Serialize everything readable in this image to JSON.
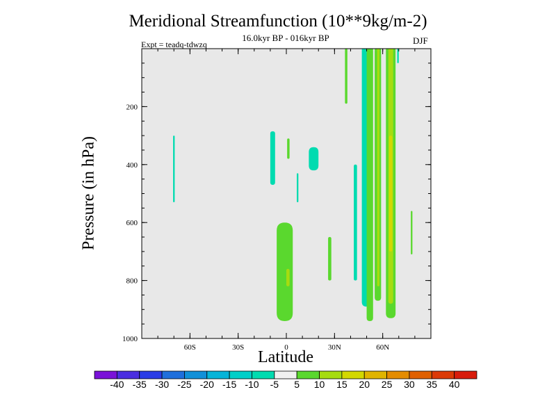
{
  "colors": {
    "plot_background": "#e8e8e8",
    "near_zero": "#e8e8e8"
  },
  "chart_data": {
    "type": "heatmap",
    "subtype": "filled-contour",
    "title": "Meridional Streamfunction (10**9kg/m-2)",
    "subtitle": "16.0kyr BP - 016kyr BP",
    "left_label": "Expt = teadq-tdwzq",
    "right_label": "DJF",
    "xlabel": "Latitude",
    "ylabel": "Pressure (in hPa)",
    "xlim": [
      -90,
      90
    ],
    "ylim": [
      1000,
      0
    ],
    "x_ticks": [
      {
        "value": -60,
        "label": "60S"
      },
      {
        "value": -30,
        "label": "30S"
      },
      {
        "value": 0,
        "label": "0"
      },
      {
        "value": 30,
        "label": "30N"
      },
      {
        "value": 60,
        "label": "60N"
      }
    ],
    "y_ticks": [
      {
        "value": 200,
        "label": "200"
      },
      {
        "value": 400,
        "label": "400"
      },
      {
        "value": 600,
        "label": "600"
      },
      {
        "value": 800,
        "label": "800"
      },
      {
        "value": 1000,
        "label": "1000"
      }
    ],
    "colorbar": {
      "labels": [
        "-40",
        "-35",
        "-30",
        "-25",
        "-20",
        "-15",
        "-10",
        "-5",
        "5",
        "10",
        "15",
        "20",
        "25",
        "30",
        "35",
        "40"
      ],
      "colors": [
        "#7a12d8",
        "#4a2ee0",
        "#2a3ce6",
        "#1f6fdc",
        "#1190d8",
        "#06b4d8",
        "#00cfc8",
        "#00dbb0",
        "#f0f0f0",
        "#5ad82e",
        "#a6dc10",
        "#d3d800",
        "#e0b400",
        "#e48c00",
        "#e06000",
        "#dc3a06",
        "#d81c0c"
      ]
    },
    "features": [
      {
        "sign": "negative",
        "level": -5,
        "lat_range": [
          -70.5,
          -69.5
        ],
        "p_range": [
          300,
          530
        ]
      },
      {
        "sign": "negative",
        "level": -5,
        "lat_range": [
          -10,
          -7
        ],
        "p_range": [
          285,
          470
        ]
      },
      {
        "sign": "positive",
        "level": 5,
        "lat_range": [
          0.5,
          2
        ],
        "p_range": [
          310,
          380
        ]
      },
      {
        "sign": "negative",
        "level": -5,
        "lat_range": [
          14,
          20
        ],
        "p_range": [
          340,
          420
        ]
      },
      {
        "sign": "negative",
        "level": -5,
        "lat_range": [
          6.5,
          7.5
        ],
        "p_range": [
          430,
          530
        ]
      },
      {
        "sign": "positive",
        "level": 5,
        "lat_range": [
          -6,
          4
        ],
        "p_range": [
          600,
          940
        ]
      },
      {
        "sign": "positive",
        "level": 10,
        "lat_range": [
          0,
          2
        ],
        "p_range": [
          760,
          820
        ]
      },
      {
        "sign": "positive",
        "level": 5,
        "lat_range": [
          26,
          28
        ],
        "p_range": [
          650,
          800
        ]
      },
      {
        "sign": "negative",
        "level": -5,
        "lat_range": [
          42,
          44
        ],
        "p_range": [
          400,
          800
        ]
      },
      {
        "sign": "positive",
        "level": 5,
        "lat_range": [
          36.5,
          38
        ],
        "p_range": [
          0,
          190
        ]
      },
      {
        "sign": "negative",
        "level": -5,
        "lat_range": [
          47,
          53
        ],
        "p_range": [
          0,
          890
        ]
      },
      {
        "sign": "positive",
        "level": 5,
        "lat_range": [
          50,
          54
        ],
        "p_range": [
          0,
          940
        ]
      },
      {
        "sign": "positive",
        "level": 5,
        "lat_range": [
          55,
          59
        ],
        "p_range": [
          0,
          870
        ]
      },
      {
        "sign": "positive",
        "level": 10,
        "lat_range": [
          56.5,
          58
        ],
        "p_range": [
          0,
          820
        ]
      },
      {
        "sign": "positive",
        "level": 5,
        "lat_range": [
          62,
          68
        ],
        "p_range": [
          0,
          930
        ]
      },
      {
        "sign": "positive",
        "level": 10,
        "lat_range": [
          63.5,
          66.5
        ],
        "p_range": [
          0,
          880
        ]
      },
      {
        "sign": "positive",
        "level": 15,
        "lat_range": [
          64,
          66
        ],
        "p_range": [
          300,
          700
        ]
      },
      {
        "sign": "negative",
        "level": -5,
        "lat_range": [
          69,
          70
        ],
        "p_range": [
          0,
          50
        ]
      },
      {
        "sign": "positive",
        "level": 5,
        "lat_range": [
          77.5,
          78.5
        ],
        "p_range": [
          560,
          710
        ]
      }
    ]
  }
}
